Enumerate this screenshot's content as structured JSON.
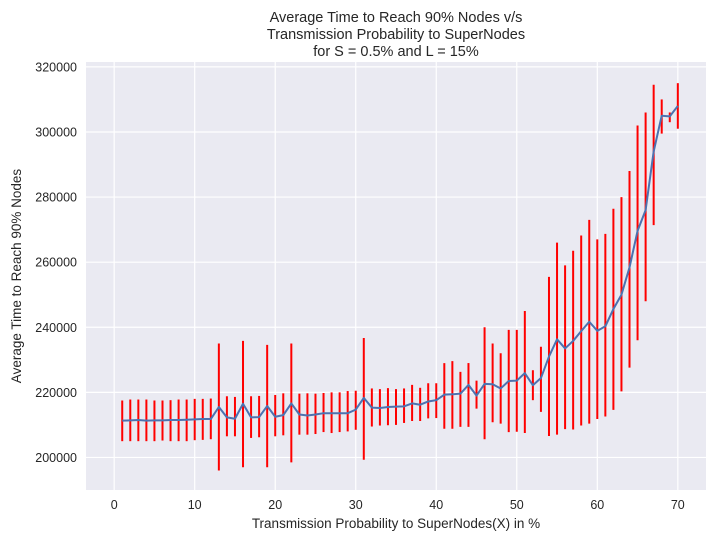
{
  "chart_data": {
    "type": "line",
    "title_lines": [
      "Average Time to Reach 90% Nodes v/s",
      "Transmission Probability to SuperNodes",
      "for S = 0.5% and L = 15%"
    ],
    "xlabel": "Transmission Probability to SuperNodes(X) in %",
    "ylabel": "Average Time to Reach 90% Nodes",
    "xlim": [
      -3.5,
      73.5
    ],
    "ylim": [
      190000,
      321500
    ],
    "x_ticks": [
      0,
      10,
      20,
      30,
      40,
      50,
      60,
      70
    ],
    "y_ticks": [
      200000,
      220000,
      240000,
      260000,
      280000,
      300000,
      320000
    ],
    "grid": true,
    "colors": {
      "line": "#4c72b0",
      "errorbar": "#ff0000",
      "background": "#eaeaf2",
      "grid": "#ffffff"
    },
    "x": [
      1,
      2,
      3,
      4,
      5,
      6,
      7,
      8,
      9,
      10,
      11,
      12,
      13,
      14,
      15,
      16,
      17,
      18,
      19,
      20,
      21,
      22,
      23,
      24,
      25,
      26,
      27,
      28,
      29,
      30,
      31,
      32,
      33,
      34,
      35,
      36,
      37,
      38,
      39,
      40,
      41,
      42,
      43,
      44,
      45,
      46,
      47,
      48,
      49,
      50,
      51,
      52,
      53,
      54,
      55,
      56,
      57,
      58,
      59,
      60,
      61,
      62,
      63,
      64,
      65,
      66,
      67,
      68,
      69,
      70
    ],
    "y": [
      211300,
      211400,
      211500,
      211300,
      211400,
      211400,
      211500,
      211500,
      211600,
      211700,
      211800,
      211800,
      215500,
      212300,
      211900,
      216500,
      212300,
      212400,
      215800,
      212500,
      213000,
      216600,
      213200,
      212900,
      213200,
      213600,
      213600,
      213600,
      213600,
      214700,
      218300,
      215300,
      215200,
      215500,
      215600,
      215700,
      216600,
      216200,
      217200,
      217600,
      219300,
      219400,
      219600,
      222300,
      219000,
      222600,
      222500,
      221200,
      223500,
      223600,
      225900,
      222200,
      224400,
      231000,
      236300,
      233500,
      235800,
      238800,
      241700,
      238900,
      240300,
      245600,
      250000,
      258400,
      269600,
      276000,
      294000,
      305000,
      304800,
      308000
    ],
    "err_low": [
      205000,
      205000,
      205000,
      205000,
      205000,
      205200,
      205000,
      205000,
      205000,
      205300,
      205400,
      205600,
      196000,
      206500,
      206500,
      197000,
      206000,
      206200,
      197000,
      206500,
      206800,
      198500,
      207000,
      207000,
      207200,
      207800,
      207500,
      207800,
      208000,
      208500,
      199300,
      209500,
      209800,
      209900,
      210000,
      210600,
      211200,
      211200,
      212000,
      212100,
      208800,
      208800,
      209400,
      209400,
      215000,
      205600,
      210800,
      210400,
      207800,
      207900,
      207500,
      217600,
      214000,
      206600,
      207000,
      208700,
      208600,
      209800,
      210400,
      211800,
      212600,
      214600,
      220300,
      227600,
      236000,
      248000,
      271400,
      299500,
      303000,
      301000
    ],
    "err_high": [
      217500,
      217800,
      217800,
      217800,
      217500,
      217500,
      217600,
      217800,
      217800,
      218000,
      218000,
      218100,
      235000,
      218800,
      218600,
      235800,
      218800,
      218900,
      234600,
      219200,
      219700,
      235000,
      219600,
      219700,
      219600,
      219800,
      220000,
      220000,
      220400,
      220500,
      236700,
      221200,
      221000,
      221300,
      221000,
      221200,
      222300,
      221400,
      222800,
      222800,
      229000,
      229600,
      226300,
      229000,
      223600,
      240000,
      235000,
      232000,
      239200,
      239200,
      245000,
      226800,
      234000,
      255500,
      266000,
      259000,
      263500,
      268200,
      273000,
      267000,
      268700,
      276400,
      280000,
      288000,
      302000,
      306000,
      314500,
      310000,
      306000,
      315000
    ]
  }
}
